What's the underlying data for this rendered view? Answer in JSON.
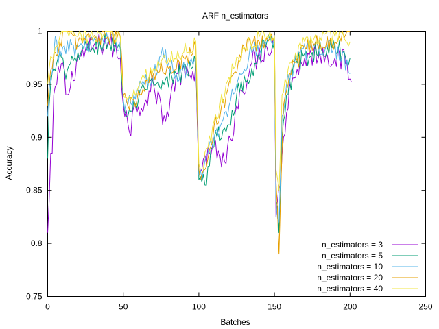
{
  "chart_data": {
    "type": "line",
    "title": "ARF n_estimators",
    "xlabel": "Batches",
    "ylabel": "Accuracy",
    "xlim": [
      0,
      250
    ],
    "ylim": [
      0.75,
      1.0
    ],
    "x_ticks": [
      "0",
      "50",
      "100",
      "150",
      "200",
      "250"
    ],
    "y_ticks": [
      "0.75",
      "0.8",
      "0.85",
      "0.9",
      "0.95",
      "1"
    ],
    "grid": false,
    "legend_position": "bottom-right",
    "segments": [
      {
        "x0": 0,
        "x1": 50,
        "base": 0.982
      },
      {
        "x0": 50,
        "x1": 100,
        "base": 0.955
      },
      {
        "x0": 100,
        "x1": 150,
        "base": 0.975
      },
      {
        "x0": 150,
        "x1": 200,
        "base": 0.978
      }
    ],
    "series": [
      {
        "name": "n_estimators = 3",
        "color": "#9400d3",
        "keypoints": [
          [
            0,
            0.81
          ],
          [
            1,
            0.84
          ],
          [
            2,
            0.885
          ],
          [
            3,
            0.885
          ],
          [
            4,
            0.94
          ],
          [
            6,
            0.95
          ],
          [
            10,
            0.97
          ],
          [
            12,
            0.94
          ],
          [
            13,
            0.94
          ],
          [
            20,
            0.975
          ],
          [
            30,
            0.985
          ],
          [
            40,
            0.99
          ],
          [
            48,
            0.975
          ],
          [
            50,
            0.93
          ],
          [
            52,
            0.925
          ],
          [
            54,
            0.905
          ],
          [
            58,
            0.93
          ],
          [
            65,
            0.935
          ],
          [
            70,
            0.95
          ],
          [
            78,
            0.915
          ],
          [
            85,
            0.96
          ],
          [
            95,
            0.955
          ],
          [
            98,
            0.97
          ],
          [
            100,
            0.865
          ],
          [
            102,
            0.87
          ],
          [
            105,
            0.875
          ],
          [
            110,
            0.9
          ],
          [
            112,
            0.88
          ],
          [
            118,
            0.875
          ],
          [
            125,
            0.93
          ],
          [
            135,
            0.97
          ],
          [
            145,
            0.985
          ],
          [
            150,
            0.99
          ],
          [
            151,
            0.825
          ],
          [
            152,
            0.84
          ],
          [
            153,
            0.855
          ],
          [
            154,
            0.85
          ],
          [
            156,
            0.9
          ],
          [
            160,
            0.95
          ],
          [
            170,
            0.975
          ],
          [
            180,
            0.98
          ],
          [
            190,
            0.975
          ],
          [
            198,
            0.97
          ],
          [
            200,
            0.955
          ],
          [
            201,
            0.952
          ]
        ],
        "amp": 0.012
      },
      {
        "name": "n_estimators = 5",
        "color": "#009e73",
        "keypoints": [
          [
            0,
            0.88
          ],
          [
            1,
            0.93
          ],
          [
            2,
            0.95
          ],
          [
            4,
            0.965
          ],
          [
            6,
            0.97
          ],
          [
            10,
            0.975
          ],
          [
            12,
            0.955
          ],
          [
            20,
            0.98
          ],
          [
            30,
            0.985
          ],
          [
            40,
            0.99
          ],
          [
            48,
            0.985
          ],
          [
            50,
            0.935
          ],
          [
            52,
            0.92
          ],
          [
            56,
            0.925
          ],
          [
            60,
            0.935
          ],
          [
            65,
            0.945
          ],
          [
            70,
            0.95
          ],
          [
            75,
            0.945
          ],
          [
            85,
            0.96
          ],
          [
            95,
            0.965
          ],
          [
            98,
            0.97
          ],
          [
            100,
            0.86
          ],
          [
            102,
            0.858
          ],
          [
            104,
            0.855
          ],
          [
            108,
            0.89
          ],
          [
            112,
            0.9
          ],
          [
            118,
            0.905
          ],
          [
            125,
            0.94
          ],
          [
            135,
            0.965
          ],
          [
            145,
            0.99
          ],
          [
            150,
            0.99
          ],
          [
            151,
            0.84
          ],
          [
            152,
            0.835
          ],
          [
            153,
            0.81
          ],
          [
            155,
            0.9
          ],
          [
            158,
            0.94
          ],
          [
            165,
            0.97
          ],
          [
            175,
            0.98
          ],
          [
            185,
            0.985
          ],
          [
            195,
            0.98
          ],
          [
            200,
            0.975
          ]
        ],
        "amp": 0.01
      },
      {
        "name": "n_estimators = 10",
        "color": "#56b4e9",
        "keypoints": [
          [
            0,
            0.92
          ],
          [
            1,
            0.945
          ],
          [
            3,
            0.96
          ],
          [
            5,
            0.995
          ],
          [
            7,
            0.97
          ],
          [
            10,
            0.985
          ],
          [
            20,
            0.985
          ],
          [
            30,
            0.99
          ],
          [
            40,
            0.99
          ],
          [
            48,
            0.99
          ],
          [
            50,
            0.935
          ],
          [
            53,
            0.93
          ],
          [
            57,
            0.94
          ],
          [
            62,
            0.95
          ],
          [
            70,
            0.955
          ],
          [
            76,
            0.985
          ],
          [
            80,
            0.97
          ],
          [
            85,
            0.96
          ],
          [
            92,
            0.965
          ],
          [
            98,
            0.975
          ],
          [
            100,
            0.865
          ],
          [
            102,
            0.86
          ],
          [
            106,
            0.885
          ],
          [
            110,
            0.9
          ],
          [
            114,
            0.91
          ],
          [
            120,
            0.93
          ],
          [
            127,
            0.96
          ],
          [
            135,
            0.98
          ],
          [
            145,
            0.99
          ],
          [
            150,
            0.995
          ],
          [
            151,
            0.84
          ],
          [
            153,
            0.82
          ],
          [
            155,
            0.92
          ],
          [
            158,
            0.95
          ],
          [
            165,
            0.975
          ],
          [
            175,
            0.985
          ],
          [
            185,
            0.985
          ],
          [
            195,
            0.98
          ],
          [
            200,
            0.96
          ]
        ],
        "amp": 0.009
      },
      {
        "name": "n_estimators = 20",
        "color": "#e69f00",
        "keypoints": [
          [
            0,
            0.93
          ],
          [
            1,
            0.95
          ],
          [
            3,
            0.965
          ],
          [
            5,
            0.98
          ],
          [
            8,
            0.99
          ],
          [
            11,
            1.0
          ],
          [
            20,
            0.99
          ],
          [
            30,
            0.995
          ],
          [
            40,
            0.995
          ],
          [
            48,
            0.995
          ],
          [
            50,
            0.94
          ],
          [
            53,
            0.93
          ],
          [
            57,
            0.935
          ],
          [
            62,
            0.94
          ],
          [
            70,
            0.96
          ],
          [
            80,
            0.965
          ],
          [
            90,
            0.975
          ],
          [
            98,
            0.985
          ],
          [
            100,
            0.87
          ],
          [
            102,
            0.865
          ],
          [
            106,
            0.88
          ],
          [
            110,
            0.91
          ],
          [
            114,
            0.92
          ],
          [
            118,
            0.94
          ],
          [
            123,
            0.96
          ],
          [
            130,
            0.985
          ],
          [
            140,
            0.99
          ],
          [
            150,
            0.995
          ],
          [
            151,
            0.86
          ],
          [
            153,
            0.79
          ],
          [
            154,
            0.84
          ],
          [
            156,
            0.93
          ],
          [
            160,
            0.96
          ],
          [
            170,
            0.985
          ],
          [
            180,
            0.99
          ],
          [
            190,
            0.99
          ],
          [
            200,
            1.0
          ]
        ],
        "amp": 0.009
      },
      {
        "name": "n_estimators = 40",
        "color": "#f0e442",
        "keypoints": [
          [
            0,
            0.95
          ],
          [
            1,
            0.965
          ],
          [
            3,
            0.975
          ],
          [
            5,
            0.985
          ],
          [
            8,
            0.995
          ],
          [
            12,
            1.0
          ],
          [
            20,
            0.995
          ],
          [
            30,
            0.995
          ],
          [
            40,
            1.0
          ],
          [
            48,
            0.995
          ],
          [
            50,
            0.94
          ],
          [
            53,
            0.935
          ],
          [
            57,
            0.945
          ],
          [
            62,
            0.955
          ],
          [
            70,
            0.965
          ],
          [
            80,
            0.975
          ],
          [
            90,
            0.98
          ],
          [
            98,
            0.99
          ],
          [
            100,
            0.875
          ],
          [
            102,
            0.87
          ],
          [
            106,
            0.89
          ],
          [
            110,
            0.915
          ],
          [
            114,
            0.93
          ],
          [
            118,
            0.95
          ],
          [
            123,
            0.965
          ],
          [
            130,
            0.985
          ],
          [
            140,
            0.995
          ],
          [
            150,
            0.995
          ],
          [
            151,
            0.87
          ],
          [
            153,
            0.85
          ],
          [
            155,
            0.94
          ],
          [
            160,
            0.97
          ],
          [
            170,
            0.99
          ],
          [
            180,
            0.995
          ],
          [
            190,
            0.995
          ],
          [
            200,
            0.99
          ]
        ],
        "amp": 0.008
      }
    ]
  }
}
